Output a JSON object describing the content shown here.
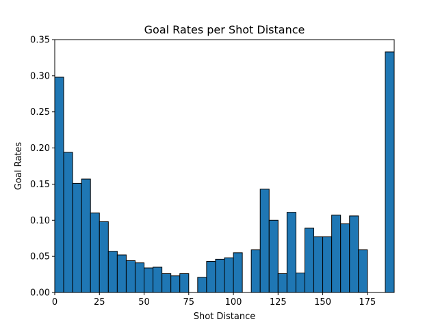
{
  "chart_data": {
    "type": "bar",
    "title": "Goal Rates per Shot Distance",
    "xlabel": "Shot Distance",
    "ylabel": "Goal Rates",
    "xlim": [
      0,
      190
    ],
    "ylim": [
      0,
      0.35
    ],
    "bin_width": 5,
    "xticks": [
      0,
      25,
      50,
      75,
      100,
      125,
      150,
      175
    ],
    "xtick_labels": [
      "0",
      "25",
      "50",
      "75",
      "100",
      "125",
      "150",
      "175"
    ],
    "yticks": [
      0,
      0.05,
      0.1,
      0.15,
      0.2,
      0.25,
      0.3,
      0.35
    ],
    "ytick_labels": [
      "0.00",
      "0.05",
      "0.10",
      "0.15",
      "0.20",
      "0.25",
      "0.30",
      "0.35"
    ],
    "grid": false,
    "bar_color": "#1f77b4",
    "edge_color": "#000000",
    "x": [
      0,
      5,
      10,
      15,
      20,
      25,
      30,
      35,
      40,
      45,
      50,
      55,
      60,
      65,
      70,
      75,
      80,
      85,
      90,
      95,
      100,
      105,
      110,
      115,
      120,
      125,
      130,
      135,
      140,
      145,
      150,
      155,
      160,
      165,
      170,
      175,
      180,
      185
    ],
    "values": [
      0.298,
      0.194,
      0.151,
      0.157,
      0.11,
      0.098,
      0.057,
      0.052,
      0.044,
      0.041,
      0.034,
      0.035,
      0.026,
      0.023,
      0.026,
      0.0,
      0.021,
      0.043,
      0.046,
      0.048,
      0.055,
      0.0,
      0.059,
      0.143,
      0.1,
      0.026,
      0.111,
      0.027,
      0.089,
      0.077,
      0.077,
      0.107,
      0.095,
      0.106,
      0.059,
      0.0,
      0.0,
      0.333
    ]
  }
}
